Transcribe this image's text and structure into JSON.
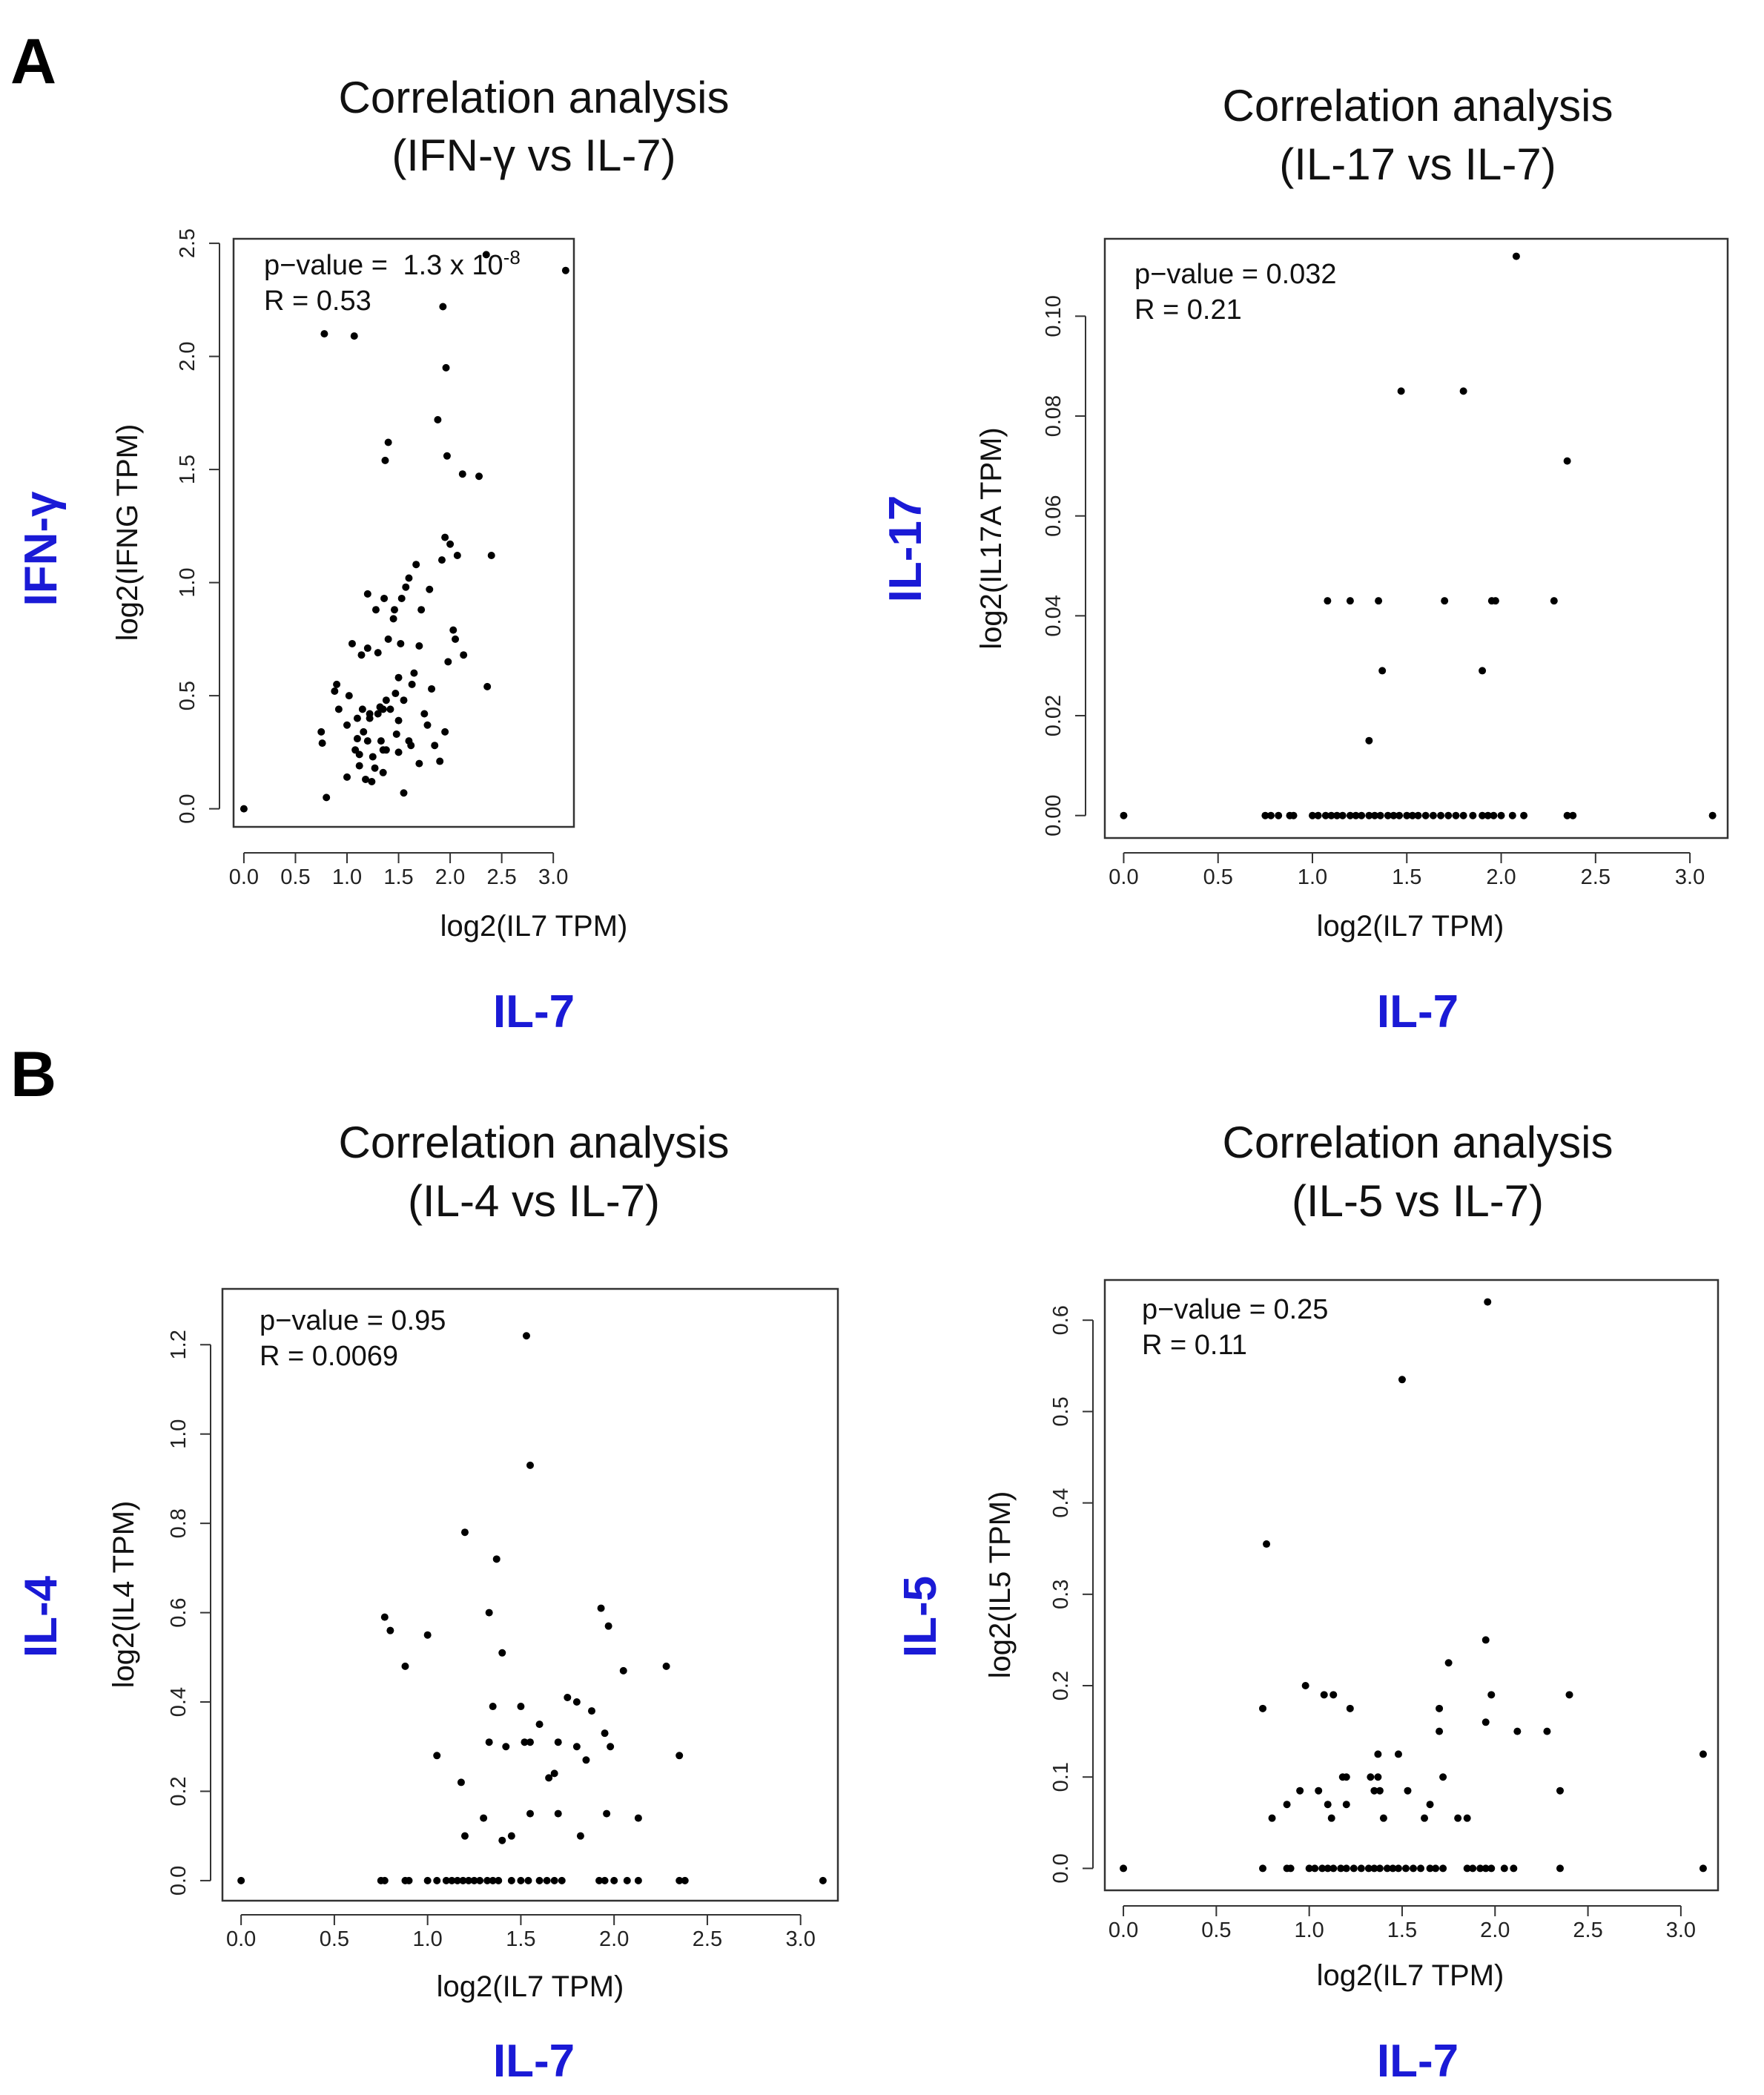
{
  "panels": {
    "A": "A",
    "B": "B"
  },
  "x_blue_label": "IL-7",
  "chart_data": [
    {
      "type": "scatter",
      "panel": "A",
      "title_line1": "Correlation analysis",
      "title_line2": "(IFN-γ vs IL-7)",
      "blue_ylabel": "IFN-γ",
      "xlabel": "log2(IL7 TPM)",
      "ylabel": "log2(IFNG TPM)",
      "xlim": [
        -0.1,
        3.2
      ],
      "ylim": [
        -0.08,
        2.52
      ],
      "xticks": [
        "0.0",
        "0.5",
        "1.0",
        "1.5",
        "2.0",
        "2.5",
        "3.0"
      ],
      "yticks": [
        "0.0",
        "0.5",
        "1.0",
        "1.5",
        "2.0",
        "2.5"
      ],
      "pvalue_label": "p−value = ",
      "pvalue_base": "1.3 x 10",
      "pvalue_exp": "-8",
      "r_text": "R = 0.53",
      "points": [
        [
          0.0,
          0.0
        ],
        [
          0.75,
          0.34
        ],
        [
          0.76,
          0.29
        ],
        [
          0.8,
          0.05
        ],
        [
          0.78,
          2.1
        ],
        [
          0.88,
          0.52
        ],
        [
          0.9,
          0.55
        ],
        [
          0.92,
          0.44
        ],
        [
          1.0,
          0.37
        ],
        [
          1.0,
          0.14
        ],
        [
          1.02,
          0.5
        ],
        [
          1.05,
          0.73
        ],
        [
          1.07,
          2.09
        ],
        [
          1.08,
          0.26
        ],
        [
          1.1,
          0.4
        ],
        [
          1.1,
          0.31
        ],
        [
          1.12,
          0.24
        ],
        [
          1.12,
          0.19
        ],
        [
          1.14,
          0.68
        ],
        [
          1.15,
          0.44
        ],
        [
          1.16,
          0.34
        ],
        [
          1.18,
          0.13
        ],
        [
          1.2,
          0.71
        ],
        [
          1.2,
          0.95
        ],
        [
          1.2,
          0.3
        ],
        [
          1.22,
          0.42
        ],
        [
          1.22,
          0.4
        ],
        [
          1.24,
          0.12
        ],
        [
          1.25,
          0.23
        ],
        [
          1.27,
          0.18
        ],
        [
          1.28,
          0.88
        ],
        [
          1.3,
          0.69
        ],
        [
          1.3,
          0.42
        ],
        [
          1.32,
          0.45
        ],
        [
          1.33,
          0.3
        ],
        [
          1.35,
          0.44
        ],
        [
          1.35,
          0.16
        ],
        [
          1.35,
          0.26
        ],
        [
          1.36,
          0.93
        ],
        [
          1.37,
          1.54
        ],
        [
          1.38,
          0.48
        ],
        [
          1.38,
          0.26
        ],
        [
          1.4,
          1.62
        ],
        [
          1.4,
          0.75
        ],
        [
          1.42,
          0.44
        ],
        [
          1.45,
          0.84
        ],
        [
          1.46,
          0.88
        ],
        [
          1.47,
          0.51
        ],
        [
          1.48,
          0.33
        ],
        [
          1.5,
          0.58
        ],
        [
          1.5,
          0.25
        ],
        [
          1.5,
          0.39
        ],
        [
          1.52,
          0.73
        ],
        [
          1.53,
          0.93
        ],
        [
          1.55,
          0.07
        ],
        [
          1.55,
          0.48
        ],
        [
          1.57,
          0.98
        ],
        [
          1.6,
          1.02
        ],
        [
          1.6,
          0.3
        ],
        [
          1.62,
          0.28
        ],
        [
          1.63,
          0.55
        ],
        [
          1.65,
          0.6
        ],
        [
          1.67,
          1.08
        ],
        [
          1.7,
          0.72
        ],
        [
          1.7,
          0.2
        ],
        [
          1.72,
          0.88
        ],
        [
          1.75,
          0.42
        ],
        [
          1.78,
          0.37
        ],
        [
          1.8,
          0.97
        ],
        [
          1.82,
          0.53
        ],
        [
          1.85,
          0.28
        ],
        [
          1.88,
          1.72
        ],
        [
          1.9,
          0.21
        ],
        [
          1.92,
          1.1
        ],
        [
          1.93,
          2.22
        ],
        [
          1.95,
          0.34
        ],
        [
          1.95,
          1.2
        ],
        [
          1.96,
          1.95
        ],
        [
          1.97,
          1.56
        ],
        [
          1.98,
          0.65
        ],
        [
          2.0,
          1.17
        ],
        [
          2.03,
          0.79
        ],
        [
          2.05,
          0.75
        ],
        [
          2.07,
          1.12
        ],
        [
          2.12,
          1.48
        ],
        [
          2.13,
          0.68
        ],
        [
          2.28,
          1.47
        ],
        [
          2.35,
          2.45
        ],
        [
          2.36,
          0.54
        ],
        [
          2.4,
          1.12
        ],
        [
          3.12,
          2.38
        ]
      ]
    },
    {
      "type": "scatter",
      "panel": "A",
      "title_line1": "Correlation analysis",
      "title_line2": "(IL-17 vs IL-7)",
      "blue_ylabel": "IL-17",
      "xlabel": "log2(IL7 TPM)",
      "ylabel": "log2(IL17A TPM)",
      "xlim": [
        -0.1,
        3.2
      ],
      "ylim": [
        -0.0045,
        0.1155
      ],
      "xticks": [
        "0.0",
        "0.5",
        "1.0",
        "1.5",
        "2.0",
        "2.5",
        "3.0"
      ],
      "yticks": [
        "0.00",
        "0.02",
        "0.04",
        "0.06",
        "0.08",
        "0.10"
      ],
      "pvalue_text": "p−value = 0.032",
      "r_text": "R = 0.21",
      "points": [
        [
          0.0,
          0.0
        ],
        [
          0.75,
          0.0
        ],
        [
          0.78,
          0.0
        ],
        [
          0.82,
          0.0
        ],
        [
          0.88,
          0.0
        ],
        [
          0.9,
          0.0
        ],
        [
          1.0,
          0.0
        ],
        [
          1.03,
          0.0
        ],
        [
          1.07,
          0.0
        ],
        [
          1.1,
          0.0
        ],
        [
          1.13,
          0.0
        ],
        [
          1.16,
          0.0
        ],
        [
          1.2,
          0.0
        ],
        [
          1.23,
          0.0
        ],
        [
          1.26,
          0.0
        ],
        [
          1.3,
          0.0
        ],
        [
          1.33,
          0.0
        ],
        [
          1.36,
          0.0
        ],
        [
          1.4,
          0.0
        ],
        [
          1.43,
          0.0
        ],
        [
          1.46,
          0.0
        ],
        [
          1.5,
          0.0
        ],
        [
          1.53,
          0.0
        ],
        [
          1.56,
          0.0
        ],
        [
          1.6,
          0.0
        ],
        [
          1.64,
          0.0
        ],
        [
          1.68,
          0.0
        ],
        [
          1.72,
          0.0
        ],
        [
          1.76,
          0.0
        ],
        [
          1.8,
          0.0
        ],
        [
          1.85,
          0.0
        ],
        [
          1.9,
          0.0
        ],
        [
          1.93,
          0.0
        ],
        [
          1.96,
          0.0
        ],
        [
          2.0,
          0.0
        ],
        [
          2.06,
          0.0
        ],
        [
          2.12,
          0.0
        ],
        [
          2.35,
          0.0
        ],
        [
          2.38,
          0.0
        ],
        [
          3.12,
          0.0
        ],
        [
          1.08,
          0.043
        ],
        [
          1.2,
          0.043
        ],
        [
          1.35,
          0.043
        ],
        [
          1.7,
          0.043
        ],
        [
          1.95,
          0.043
        ],
        [
          1.97,
          0.043
        ],
        [
          2.28,
          0.043
        ],
        [
          1.37,
          0.029
        ],
        [
          1.9,
          0.029
        ],
        [
          1.3,
          0.015
        ],
        [
          1.47,
          0.085
        ],
        [
          1.8,
          0.085
        ],
        [
          2.35,
          0.071
        ],
        [
          2.08,
          0.112
        ]
      ]
    },
    {
      "type": "scatter",
      "panel": "B",
      "title_line1": "Correlation analysis",
      "title_line2": "(IL-4 vs IL-7)",
      "blue_ylabel": "IL-4",
      "xlabel": "log2(IL7 TPM)",
      "ylabel": "log2(IL4 TPM)",
      "xlim": [
        -0.1,
        3.2
      ],
      "ylim": [
        -0.045,
        1.325
      ],
      "xticks": [
        "0.0",
        "0.5",
        "1.0",
        "1.5",
        "2.0",
        "2.5",
        "3.0"
      ],
      "yticks": [
        "0.0",
        "0.2",
        "0.4",
        "0.6",
        "0.8",
        "1.0",
        "1.2"
      ],
      "pvalue_text": "p−value = 0.95",
      "r_text": "R = 0.0069",
      "points": [
        [
          0.0,
          0.0
        ],
        [
          0.75,
          0.0
        ],
        [
          0.77,
          0.0
        ],
        [
          0.88,
          0.0
        ],
        [
          0.9,
          0.0
        ],
        [
          1.0,
          0.0
        ],
        [
          1.05,
          0.0
        ],
        [
          1.1,
          0.0
        ],
        [
          1.13,
          0.0
        ],
        [
          1.16,
          0.0
        ],
        [
          1.19,
          0.0
        ],
        [
          1.22,
          0.0
        ],
        [
          1.25,
          0.0
        ],
        [
          1.28,
          0.0
        ],
        [
          1.32,
          0.0
        ],
        [
          1.35,
          0.0
        ],
        [
          1.38,
          0.0
        ],
        [
          1.45,
          0.0
        ],
        [
          1.5,
          0.0
        ],
        [
          1.54,
          0.0
        ],
        [
          1.6,
          0.0
        ],
        [
          1.64,
          0.0
        ],
        [
          1.68,
          0.0
        ],
        [
          1.72,
          0.0
        ],
        [
          1.92,
          0.0
        ],
        [
          1.95,
          0.0
        ],
        [
          2.0,
          0.0
        ],
        [
          2.07,
          0.0
        ],
        [
          2.13,
          0.0
        ],
        [
          2.35,
          0.0
        ],
        [
          2.38,
          0.0
        ],
        [
          3.12,
          0.0
        ],
        [
          0.77,
          0.59
        ],
        [
          0.8,
          0.56
        ],
        [
          0.88,
          0.48
        ],
        [
          1.0,
          0.55
        ],
        [
          1.05,
          0.28
        ],
        [
          1.18,
          0.22
        ],
        [
          1.2,
          0.78
        ],
        [
          1.2,
          0.1
        ],
        [
          1.3,
          0.14
        ],
        [
          1.33,
          0.6
        ],
        [
          1.35,
          0.39
        ],
        [
          1.33,
          0.31
        ],
        [
          1.37,
          0.72
        ],
        [
          1.4,
          0.51
        ],
        [
          1.4,
          0.09
        ],
        [
          1.42,
          0.3
        ],
        [
          1.45,
          0.1
        ],
        [
          1.5,
          0.39
        ],
        [
          1.52,
          0.31
        ],
        [
          1.55,
          0.31
        ],
        [
          1.55,
          0.15
        ],
        [
          1.55,
          0.93
        ],
        [
          1.53,
          1.22
        ],
        [
          1.6,
          0.35
        ],
        [
          1.65,
          0.23
        ],
        [
          1.68,
          0.24
        ],
        [
          1.7,
          0.15
        ],
        [
          1.7,
          0.31
        ],
        [
          1.75,
          0.41
        ],
        [
          1.8,
          0.4
        ],
        [
          1.8,
          0.3
        ],
        [
          1.82,
          0.1
        ],
        [
          1.85,
          0.27
        ],
        [
          1.88,
          0.38
        ],
        [
          1.93,
          0.61
        ],
        [
          1.95,
          0.33
        ],
        [
          1.96,
          0.15
        ],
        [
          1.97,
          0.57
        ],
        [
          1.98,
          0.3
        ],
        [
          2.05,
          0.47
        ],
        [
          2.13,
          0.14
        ],
        [
          2.28,
          0.48
        ],
        [
          2.35,
          0.28
        ]
      ]
    },
    {
      "type": "scatter",
      "panel": "B",
      "title_line1": "Correlation analysis",
      "title_line2": "(IL-5 vs IL-7)",
      "blue_ylabel": "IL-5",
      "xlabel": "log2(IL7 TPM)",
      "ylabel": "log2(IL5 TPM)",
      "xlim": [
        -0.1,
        3.2
      ],
      "ylim": [
        -0.024,
        0.644
      ],
      "xticks": [
        "0.0",
        "0.5",
        "1.0",
        "1.5",
        "2.0",
        "2.5",
        "3.0"
      ],
      "yticks": [
        "0.0",
        "0.1",
        "0.2",
        "0.3",
        "0.4",
        "0.5",
        "0.6"
      ],
      "pvalue_text": "p−value = 0.25",
      "r_text": "R = 0.11",
      "points": [
        [
          0.0,
          0.0
        ],
        [
          0.75,
          0.0
        ],
        [
          0.88,
          0.0
        ],
        [
          0.9,
          0.0
        ],
        [
          1.0,
          0.0
        ],
        [
          1.03,
          0.0
        ],
        [
          1.07,
          0.0
        ],
        [
          1.1,
          0.0
        ],
        [
          1.13,
          0.0
        ],
        [
          1.17,
          0.0
        ],
        [
          1.2,
          0.0
        ],
        [
          1.24,
          0.0
        ],
        [
          1.28,
          0.0
        ],
        [
          1.32,
          0.0
        ],
        [
          1.35,
          0.0
        ],
        [
          1.38,
          0.0
        ],
        [
          1.42,
          0.0
        ],
        [
          1.45,
          0.0
        ],
        [
          1.48,
          0.0
        ],
        [
          1.52,
          0.0
        ],
        [
          1.56,
          0.0
        ],
        [
          1.6,
          0.0
        ],
        [
          1.65,
          0.0
        ],
        [
          1.68,
          0.0
        ],
        [
          1.72,
          0.0
        ],
        [
          1.85,
          0.0
        ],
        [
          1.88,
          0.0
        ],
        [
          1.92,
          0.0
        ],
        [
          1.95,
          0.0
        ],
        [
          1.98,
          0.0
        ],
        [
          2.05,
          0.0
        ],
        [
          2.1,
          0.0
        ],
        [
          2.35,
          0.0
        ],
        [
          3.12,
          0.0
        ],
        [
          0.75,
          0.175
        ],
        [
          0.77,
          0.355
        ],
        [
          0.8,
          0.055
        ],
        [
          0.88,
          0.07
        ],
        [
          0.95,
          0.085
        ],
        [
          0.98,
          0.2
        ],
        [
          1.05,
          0.085
        ],
        [
          1.08,
          0.19
        ],
        [
          1.1,
          0.07
        ],
        [
          1.12,
          0.055
        ],
        [
          1.13,
          0.19
        ],
        [
          1.18,
          0.1
        ],
        [
          1.2,
          0.07
        ],
        [
          1.2,
          0.1
        ],
        [
          1.22,
          0.175
        ],
        [
          1.33,
          0.1
        ],
        [
          1.35,
          0.085
        ],
        [
          1.37,
          0.125
        ],
        [
          1.37,
          0.1
        ],
        [
          1.38,
          0.085
        ],
        [
          1.4,
          0.055
        ],
        [
          1.48,
          0.125
        ],
        [
          1.5,
          0.535
        ],
        [
          1.53,
          0.085
        ],
        [
          1.62,
          0.055
        ],
        [
          1.65,
          0.07
        ],
        [
          1.7,
          0.15
        ],
        [
          1.7,
          0.175
        ],
        [
          1.72,
          0.1
        ],
        [
          1.75,
          0.225
        ],
        [
          1.8,
          0.055
        ],
        [
          1.85,
          0.055
        ],
        [
          1.95,
          0.25
        ],
        [
          1.95,
          0.16
        ],
        [
          1.96,
          0.62
        ],
        [
          1.98,
          0.19
        ],
        [
          2.12,
          0.15
        ],
        [
          2.28,
          0.15
        ],
        [
          2.35,
          0.085
        ],
        [
          2.4,
          0.19
        ],
        [
          3.12,
          0.125
        ]
      ]
    }
  ]
}
